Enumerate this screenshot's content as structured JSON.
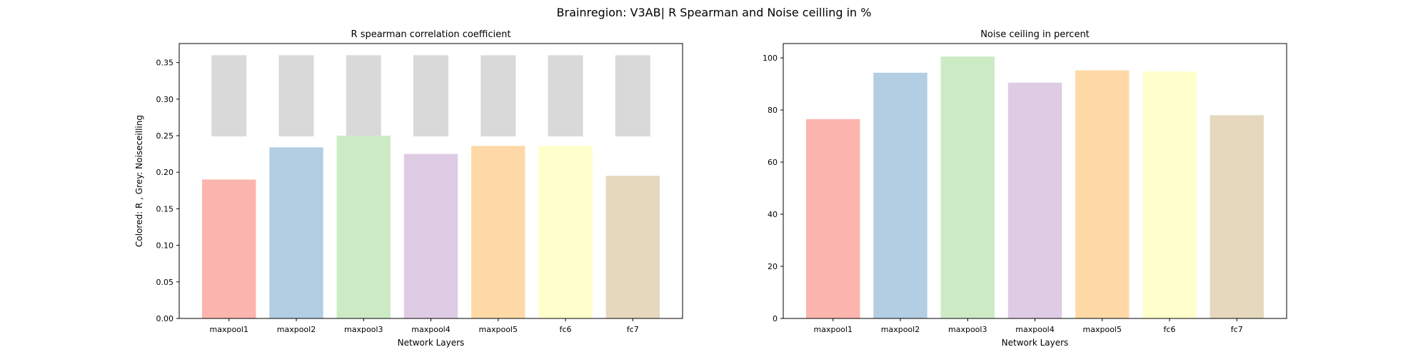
{
  "suptitle": "Brainregion: V3AB| R Spearman and Noise ceilling in %",
  "chart_data": [
    {
      "type": "bar",
      "title": "R spearman correlation coefficient",
      "xlabel": "Network Layers",
      "ylabel": "Colored: R , Grey: Noiseceilling",
      "categories": [
        "maxpool1",
        "maxpool2",
        "maxpool3",
        "maxpool4",
        "maxpool5",
        "fc6",
        "fc7"
      ],
      "values": [
        0.19,
        0.234,
        0.25,
        0.225,
        0.236,
        0.236,
        0.195
      ],
      "noise_ceiling": {
        "lower": [
          0.249,
          0.249,
          0.249,
          0.249,
          0.249,
          0.249,
          0.249
        ],
        "upper": [
          0.36,
          0.36,
          0.36,
          0.36,
          0.36,
          0.36,
          0.36
        ],
        "color": "#d9d9d9"
      },
      "ylim": [
        0,
        0.376
      ],
      "yticks": [
        0.0,
        0.05,
        0.1,
        0.15,
        0.2,
        0.25,
        0.3,
        0.35
      ],
      "ytick_labels": [
        "0.00",
        "0.05",
        "0.10",
        "0.15",
        "0.20",
        "0.25",
        "0.30",
        "0.35"
      ],
      "colors": [
        "#fbb4ae",
        "#b3cde3",
        "#ccebc5",
        "#decbe4",
        "#fed9a6",
        "#ffffcc",
        "#e5d8bd"
      ],
      "grid": false
    },
    {
      "type": "bar",
      "title": "Noise ceiling in percent",
      "xlabel": "Network Layers",
      "ylabel": "",
      "categories": [
        "maxpool1",
        "maxpool2",
        "maxpool3",
        "maxpool4",
        "maxpool5",
        "fc6",
        "fc7"
      ],
      "values": [
        76.5,
        94.3,
        100.5,
        90.5,
        95.2,
        94.8,
        78.0
      ],
      "ylim": [
        0,
        105.5
      ],
      "yticks": [
        0,
        20,
        40,
        60,
        80,
        100
      ],
      "ytick_labels": [
        "0",
        "20",
        "40",
        "60",
        "80",
        "100"
      ],
      "colors": [
        "#fbb4ae",
        "#b3cde3",
        "#ccebc5",
        "#decbe4",
        "#fed9a6",
        "#ffffcc",
        "#e5d8bd"
      ],
      "grid": false
    }
  ]
}
